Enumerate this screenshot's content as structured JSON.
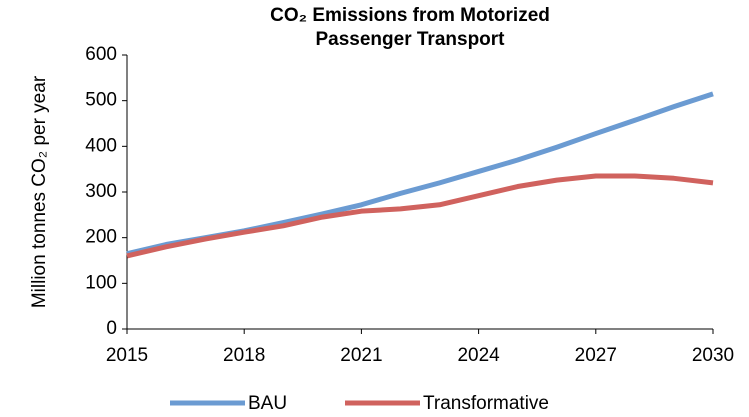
{
  "chart_data": {
    "type": "line",
    "title": "CO₂ Emissions from Motorized Passenger Transport",
    "y_label": "Million tonnes CO₂ per year",
    "x": [
      2015,
      2016,
      2017,
      2018,
      2019,
      2020,
      2021,
      2022,
      2023,
      2024,
      2025,
      2026,
      2027,
      2028,
      2029,
      2030
    ],
    "series": [
      {
        "name": "BAU",
        "color": "#6b9bd2",
        "values": [
          165,
          185,
          200,
          215,
          233,
          252,
          272,
          297,
          320,
          345,
          370,
          398,
          428,
          457,
          487,
          515
        ]
      },
      {
        "name": "Transformative",
        "color": "#d0625e",
        "values": [
          160,
          180,
          197,
          212,
          226,
          245,
          258,
          263,
          272,
          292,
          312,
          326,
          335,
          335,
          330,
          320
        ]
      }
    ],
    "xlim": [
      2015,
      2030
    ],
    "xticks": [
      2015,
      2018,
      2021,
      2024,
      2027,
      2030
    ],
    "ylim": [
      0,
      600
    ],
    "yticks": [
      0,
      100,
      200,
      300,
      400,
      500,
      600
    ],
    "grid": false,
    "legend": "bottom"
  }
}
